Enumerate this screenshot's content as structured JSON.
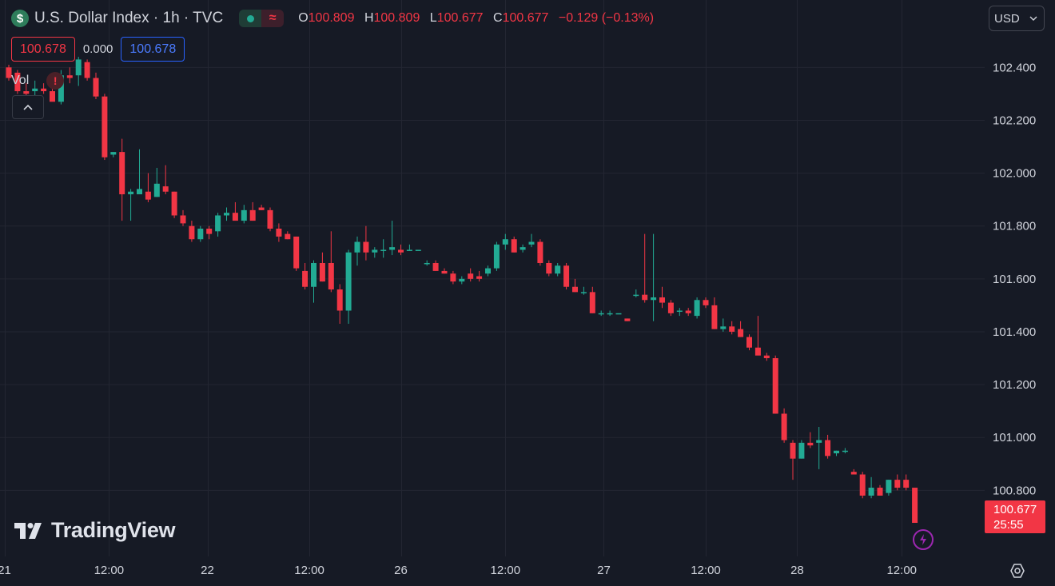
{
  "legend": {
    "symbol_badge": "$",
    "title": "U.S. Dollar Index · 1h · TVC",
    "wave_glyph": "≈",
    "ohlc": [
      {
        "k": "O",
        "v": "100.809"
      },
      {
        "k": "H",
        "v": "100.809"
      },
      {
        "k": "L",
        "v": "100.677"
      },
      {
        "k": "C",
        "v": "100.677"
      }
    ],
    "change": "−0.129 (−0.13%)"
  },
  "indicator_row": {
    "sell_price": "100.678",
    "spread": "0.000",
    "buy_price": "100.678"
  },
  "volume": {
    "label": "Vol",
    "warning_glyph": "!"
  },
  "currency_selector": {
    "value": "USD"
  },
  "last_price_tag": {
    "price": "100.677",
    "countdown": "25:55"
  },
  "brand": {
    "logo_text": "TradingView"
  },
  "icons": [
    "dollar-icon",
    "green-dot-icon",
    "wave-icon",
    "warning-icon",
    "chevron-up-icon",
    "chevron-down-icon",
    "tradingview-logo-icon",
    "lightning-icon",
    "gear-icon"
  ],
  "colors": {
    "background": "#161a25",
    "up": "#22ab94",
    "down": "#f23645",
    "grid": "#232632",
    "text": "#d1d4dc",
    "buy_box": "#2962ff",
    "bolt": "#9c27b0"
  },
  "chart_data": {
    "type": "candlestick",
    "title": "U.S. Dollar Index · 1h · TVC",
    "ylim": [
      100.55,
      102.655
    ],
    "y_ticks": [
      102.4,
      102.2,
      102.0,
      101.8,
      101.6,
      101.4,
      101.2,
      101.0,
      100.8
    ],
    "y_tick_labels": [
      "102.400",
      "102.200",
      "102.000",
      "101.800",
      "101.600",
      "101.400",
      "101.200",
      "101.000",
      "100.800"
    ],
    "x_ticks": [
      {
        "label": "21",
        "bar": -0.5
      },
      {
        "label": "12:00",
        "bar": 11.5
      },
      {
        "label": "22",
        "bar": 22.8
      },
      {
        "label": "12:00",
        "bar": 34.5
      },
      {
        "label": "26",
        "bar": 45
      },
      {
        "label": "12:00",
        "bar": 57
      },
      {
        "label": "27",
        "bar": 68.3
      },
      {
        "label": "12:00",
        "bar": 80
      },
      {
        "label": "28",
        "bar": 90.5
      },
      {
        "label": "12:00",
        "bar": 102.5
      }
    ],
    "grid": true,
    "candles": [
      [
        102.4,
        102.41,
        102.35,
        102.36
      ],
      [
        102.38,
        102.39,
        102.3,
        102.31
      ],
      [
        102.31,
        102.34,
        102.28,
        102.3
      ],
      [
        102.31,
        102.35,
        102.29,
        102.32
      ],
      [
        102.32,
        102.34,
        102.3,
        102.31
      ],
      [
        102.31,
        102.34,
        102.28,
        102.27
      ],
      [
        102.27,
        102.39,
        102.26,
        102.37
      ],
      [
        102.37,
        102.4,
        102.34,
        102.36
      ],
      [
        102.37,
        102.44,
        102.33,
        102.43
      ],
      [
        102.42,
        102.43,
        102.35,
        102.36
      ],
      [
        102.36,
        102.38,
        102.28,
        102.29
      ],
      [
        102.29,
        102.3,
        102.05,
        102.06
      ],
      [
        102.07,
        102.08,
        102.06,
        102.08
      ],
      [
        102.08,
        102.13,
        101.82,
        101.92
      ],
      [
        101.92,
        101.94,
        101.82,
        101.93
      ],
      [
        101.92,
        102.09,
        101.92,
        101.94
      ],
      [
        101.93,
        102.0,
        101.89,
        101.9
      ],
      [
        101.91,
        102.02,
        101.91,
        101.96
      ],
      [
        101.95,
        102.03,
        101.92,
        101.93
      ],
      [
        101.93,
        101.93,
        101.83,
        101.84
      ],
      [
        101.84,
        101.86,
        101.8,
        101.81
      ],
      [
        101.8,
        101.82,
        101.74,
        101.75
      ],
      [
        101.75,
        101.8,
        101.74,
        101.79
      ],
      [
        101.79,
        101.8,
        101.75,
        101.77
      ],
      [
        101.78,
        101.85,
        101.76,
        101.84
      ],
      [
        101.84,
        101.87,
        101.82,
        101.85
      ],
      [
        101.85,
        101.89,
        101.83,
        101.82
      ],
      [
        101.82,
        101.88,
        101.81,
        101.86
      ],
      [
        101.86,
        101.89,
        101.82,
        101.82
      ],
      [
        101.87,
        101.88,
        101.86,
        101.86
      ],
      [
        101.86,
        101.87,
        101.78,
        101.79
      ],
      [
        101.79,
        101.81,
        101.74,
        101.76
      ],
      [
        101.77,
        101.78,
        101.75,
        101.75
      ],
      [
        101.76,
        101.76,
        101.63,
        101.64
      ],
      [
        101.63,
        101.66,
        101.56,
        101.57
      ],
      [
        101.57,
        101.67,
        101.51,
        101.66
      ],
      [
        101.66,
        101.7,
        101.59,
        101.59
      ],
      [
        101.66,
        101.78,
        101.55,
        101.56
      ],
      [
        101.56,
        101.58,
        101.43,
        101.48
      ],
      [
        101.48,
        101.71,
        101.43,
        101.7
      ],
      [
        101.7,
        101.76,
        101.65,
        101.74
      ],
      [
        101.74,
        101.8,
        101.67,
        101.7
      ],
      [
        101.7,
        101.72,
        101.68,
        101.71
      ],
      [
        101.71,
        101.75,
        101.68,
        101.71
      ],
      [
        101.71,
        101.82,
        101.69,
        101.72
      ],
      [
        101.71,
        101.73,
        101.69,
        101.7
      ],
      [
        101.71,
        101.73,
        101.71,
        101.71
      ],
      [
        101.71,
        101.71,
        101.71,
        101.71
      ],
      [
        101.66,
        101.67,
        101.65,
        101.66
      ],
      [
        101.66,
        101.67,
        101.63,
        101.63
      ],
      [
        101.63,
        101.64,
        101.62,
        101.62
      ],
      [
        101.62,
        101.63,
        101.58,
        101.59
      ],
      [
        101.59,
        101.61,
        101.58,
        101.6
      ],
      [
        101.62,
        101.64,
        101.59,
        101.6
      ],
      [
        101.61,
        101.63,
        101.59,
        101.6
      ],
      [
        101.62,
        101.65,
        101.61,
        101.64
      ],
      [
        101.64,
        101.74,
        101.63,
        101.73
      ],
      [
        101.73,
        101.77,
        101.71,
        101.75
      ],
      [
        101.75,
        101.76,
        101.7,
        101.7
      ],
      [
        101.71,
        101.73,
        101.7,
        101.72
      ],
      [
        101.73,
        101.77,
        101.72,
        101.74
      ],
      [
        101.74,
        101.75,
        101.65,
        101.66
      ],
      [
        101.66,
        101.67,
        101.61,
        101.62
      ],
      [
        101.62,
        101.66,
        101.61,
        101.65
      ],
      [
        101.65,
        101.66,
        101.56,
        101.57
      ],
      [
        101.57,
        101.6,
        101.55,
        101.55
      ],
      [
        101.55,
        101.57,
        101.54,
        101.55
      ],
      [
        101.55,
        101.57,
        101.47,
        101.47
      ],
      [
        101.47,
        101.48,
        101.46,
        101.47
      ],
      [
        101.47,
        101.48,
        101.46,
        101.47
      ],
      [
        101.47,
        101.47,
        101.47,
        101.47
      ],
      [
        101.45,
        101.45,
        101.44,
        101.44
      ],
      [
        101.54,
        101.56,
        101.53,
        101.54
      ],
      [
        101.54,
        101.77,
        101.51,
        101.52
      ],
      [
        101.52,
        101.77,
        101.44,
        101.53
      ],
      [
        101.53,
        101.57,
        101.49,
        101.51
      ],
      [
        101.51,
        101.52,
        101.46,
        101.47
      ],
      [
        101.48,
        101.49,
        101.46,
        101.48
      ],
      [
        101.48,
        101.49,
        101.46,
        101.47
      ],
      [
        101.46,
        101.53,
        101.45,
        101.52
      ],
      [
        101.52,
        101.53,
        101.49,
        101.5
      ],
      [
        101.5,
        101.53,
        101.41,
        101.41
      ],
      [
        101.41,
        101.45,
        101.4,
        101.42
      ],
      [
        101.42,
        101.44,
        101.39,
        101.4
      ],
      [
        101.41,
        101.44,
        101.38,
        101.38
      ],
      [
        101.38,
        101.39,
        101.33,
        101.34
      ],
      [
        101.34,
        101.46,
        101.32,
        101.31
      ],
      [
        101.31,
        101.32,
        101.29,
        101.3
      ],
      [
        101.3,
        101.31,
        101.09,
        101.09
      ],
      [
        101.09,
        101.11,
        100.98,
        100.99
      ],
      [
        100.98,
        100.99,
        100.84,
        100.92
      ],
      [
        100.92,
        100.99,
        100.92,
        100.98
      ],
      [
        100.98,
        101.02,
        100.96,
        100.97
      ],
      [
        100.98,
        101.04,
        100.88,
        100.99
      ],
      [
        100.99,
        101.01,
        100.92,
        100.93
      ],
      [
        100.94,
        100.95,
        100.93,
        100.95
      ],
      [
        100.95,
        100.96,
        100.94,
        100.95
      ],
      [
        100.87,
        100.88,
        100.86,
        100.86
      ],
      [
        100.86,
        100.87,
        100.77,
        100.78
      ],
      [
        100.78,
        100.85,
        100.77,
        100.81
      ],
      [
        100.81,
        100.82,
        100.78,
        100.78
      ],
      [
        100.79,
        100.84,
        100.78,
        100.84
      ],
      [
        100.84,
        100.86,
        100.8,
        100.81
      ],
      [
        100.84,
        100.86,
        100.8,
        100.81
      ],
      [
        100.81,
        100.81,
        100.68,
        100.677
      ]
    ]
  }
}
